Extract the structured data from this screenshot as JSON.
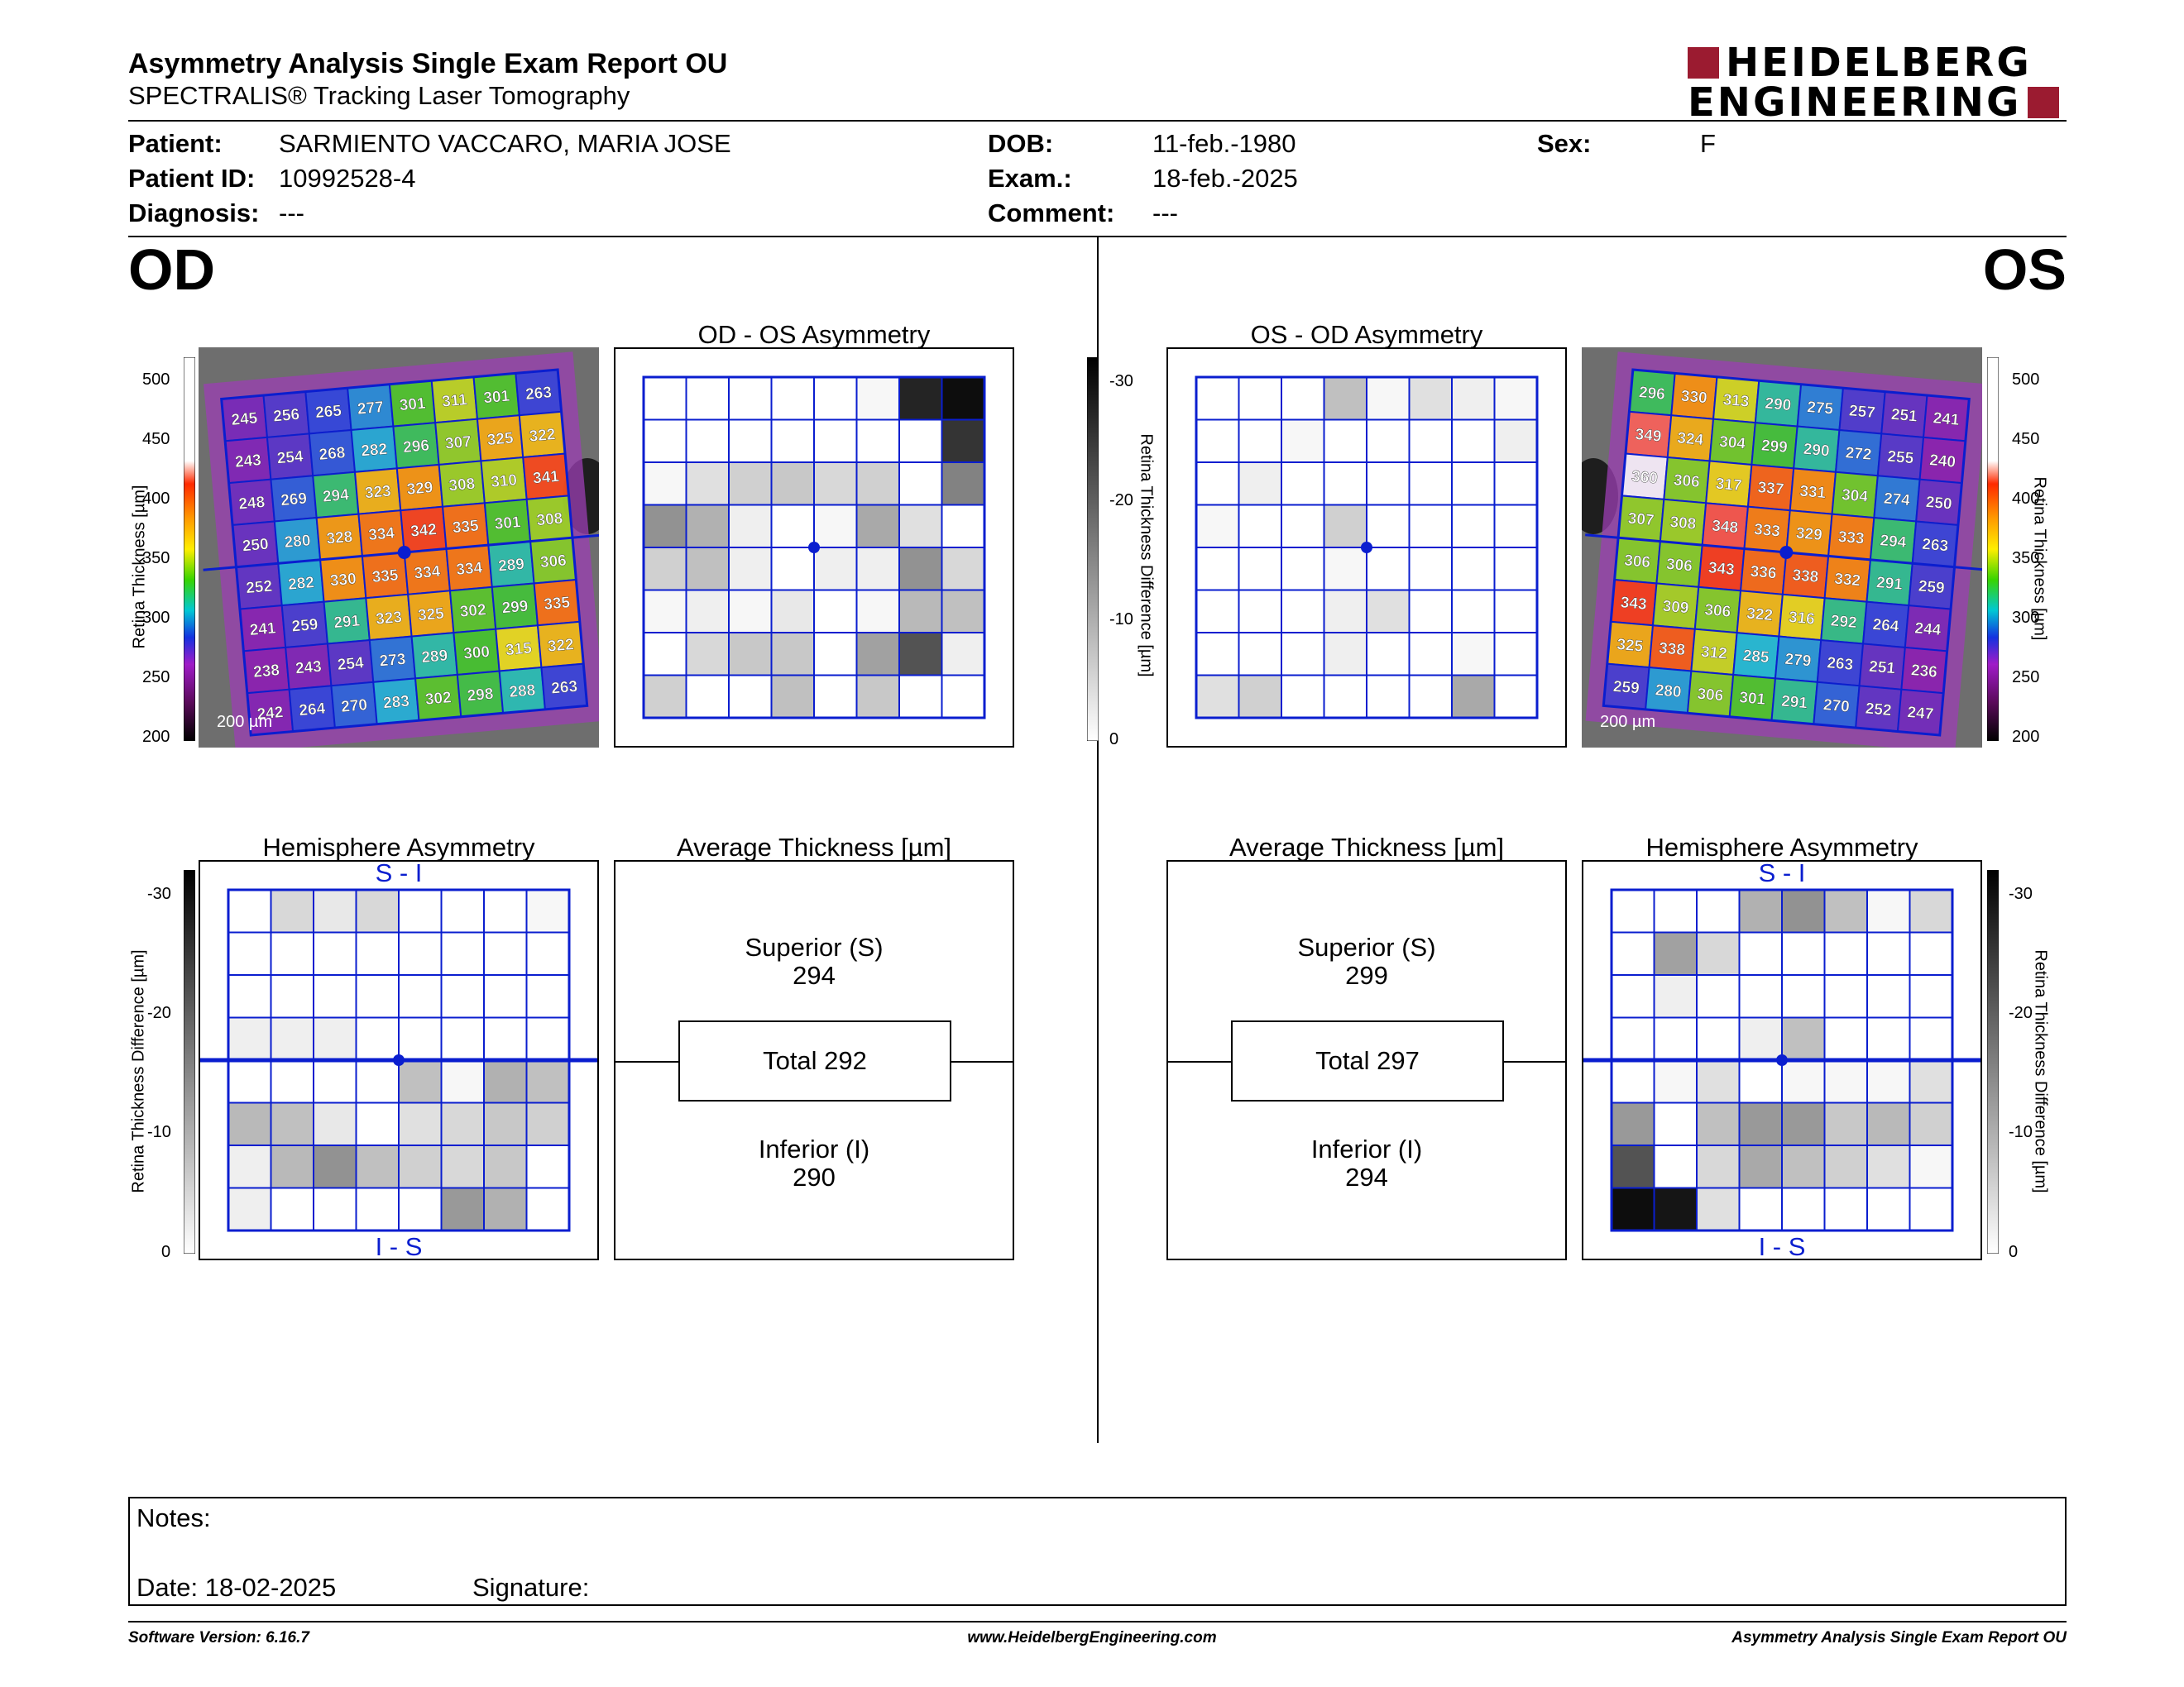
{
  "header": {
    "title": "Asymmetry Analysis Single Exam Report OU",
    "subtitle": "SPECTRALIS® Tracking Laser Tomography",
    "logo_line1": "HEIDELBERG",
    "logo_line2": "ENGINEERING"
  },
  "patient": {
    "patient_label": "Patient:",
    "patient_value": "SARMIENTO VACCARO, MARIA JOSE",
    "id_label": "Patient ID:",
    "id_value": "10992528-4",
    "diagnosis_label": "Diagnosis:",
    "diagnosis_value": "---",
    "dob_label": "DOB:",
    "dob_value": "11-feb.-1980",
    "exam_label": "Exam.:",
    "exam_value": "18-feb.-2025",
    "comment_label": "Comment:",
    "comment_value": "---",
    "sex_label": "Sex:",
    "sex_value": "F"
  },
  "od": {
    "eye_label": "OD",
    "asym_title": "OD - OS Asymmetry",
    "hemi_title": "Hemisphere Asymmetry",
    "avg_title": "Average Thickness [µm]",
    "hemi_top": "S - I",
    "hemi_bottom": "I - S",
    "superior_label": "Superior (S)",
    "superior_value": "294",
    "total_label": "Total 292",
    "inferior_label": "Inferior (I)",
    "inferior_value": "290",
    "scale_bar": "200 µm",
    "thickness_grid": [
      [
        245,
        256,
        265,
        277,
        301,
        311,
        301,
        263
      ],
      [
        243,
        254,
        268,
        282,
        296,
        307,
        325,
        322
      ],
      [
        248,
        269,
        294,
        323,
        329,
        308,
        310,
        341
      ],
      [
        250,
        280,
        328,
        334,
        342,
        335,
        301,
        308
      ],
      [
        252,
        282,
        330,
        335,
        334,
        334,
        289,
        306
      ],
      [
        241,
        259,
        291,
        323,
        325,
        302,
        299,
        335
      ],
      [
        238,
        243,
        254,
        273,
        289,
        300,
        315,
        322
      ],
      [
        242,
        264,
        270,
        283,
        302,
        298,
        288,
        263
      ]
    ],
    "asym_grid": [
      [
        0,
        0,
        0,
        0,
        0,
        1,
        28,
        31
      ],
      [
        0,
        0,
        0,
        0,
        0,
        0,
        0,
        26
      ],
      [
        1,
        4,
        6,
        7,
        5,
        6,
        0,
        16
      ],
      [
        14,
        10,
        2,
        0,
        1,
        11,
        4,
        0
      ],
      [
        6,
        8,
        2,
        0,
        2,
        2,
        14,
        5
      ],
      [
        1,
        2,
        1,
        3,
        0,
        1,
        9,
        8
      ],
      [
        0,
        5,
        7,
        7,
        0,
        12,
        22,
        2
      ],
      [
        6,
        0,
        0,
        8,
        0,
        7,
        0,
        0
      ]
    ],
    "hemi_grid": [
      [
        0,
        5,
        3,
        5,
        0,
        0,
        0,
        1
      ],
      [
        0,
        0,
        0,
        0,
        0,
        0,
        0,
        0
      ],
      [
        0,
        0,
        0,
        0,
        0,
        0,
        0,
        0
      ],
      [
        2,
        2,
        2,
        0,
        0,
        0,
        0,
        0
      ],
      [
        0,
        0,
        0,
        0,
        8,
        1,
        10,
        8
      ],
      [
        9,
        8,
        3,
        0,
        4,
        5,
        7,
        6
      ],
      [
        2,
        9,
        14,
        8,
        6,
        5,
        7,
        0
      ],
      [
        2,
        0,
        0,
        0,
        0,
        13,
        10,
        0
      ]
    ]
  },
  "os": {
    "eye_label": "OS",
    "asym_title": "OS - OD Asymmetry",
    "hemi_title": "Hemisphere Asymmetry",
    "avg_title": "Average Thickness [µm]",
    "hemi_top": "S - I",
    "hemi_bottom": "I - S",
    "superior_label": "Superior (S)",
    "superior_value": "299",
    "total_label": "Total 297",
    "inferior_label": "Inferior (I)",
    "inferior_value": "294",
    "scale_bar": "200 µm",
    "thickness_grid": [
      [
        296,
        330,
        313,
        290,
        275,
        257,
        251,
        241
      ],
      [
        349,
        324,
        304,
        299,
        290,
        272,
        255,
        240
      ],
      [
        360,
        306,
        317,
        337,
        331,
        304,
        274,
        250
      ],
      [
        307,
        308,
        348,
        333,
        329,
        333,
        294,
        263
      ],
      [
        306,
        306,
        343,
        336,
        338,
        332,
        291,
        259
      ],
      [
        343,
        309,
        306,
        322,
        316,
        292,
        264,
        244
      ],
      [
        325,
        338,
        312,
        285,
        279,
        263,
        251,
        236
      ],
      [
        259,
        280,
        306,
        301,
        291,
        270,
        252,
        247
      ]
    ],
    "asym_grid": [
      [
        0,
        0,
        0,
        8,
        1,
        4,
        2,
        1
      ],
      [
        0,
        0,
        1,
        0,
        0,
        0,
        0,
        2
      ],
      [
        0,
        2,
        0,
        0,
        0,
        0,
        0,
        0
      ],
      [
        1,
        0,
        0,
        6,
        0,
        0,
        0,
        0
      ],
      [
        0,
        0,
        0,
        1,
        0,
        0,
        0,
        0
      ],
      [
        0,
        0,
        0,
        2,
        4,
        0,
        0,
        0
      ],
      [
        0,
        0,
        0,
        2,
        0,
        0,
        1,
        0
      ],
      [
        4,
        6,
        0,
        0,
        0,
        0,
        11,
        0
      ]
    ],
    "hemi_grid": [
      [
        0,
        0,
        0,
        10,
        14,
        8,
        1,
        5
      ],
      [
        0,
        12,
        5,
        0,
        0,
        0,
        0,
        0
      ],
      [
        0,
        2,
        0,
        0,
        0,
        0,
        0,
        0
      ],
      [
        0,
        0,
        0,
        2,
        8,
        0,
        0,
        0
      ],
      [
        0,
        1,
        4,
        0,
        1,
        1,
        1,
        4
      ],
      [
        13,
        0,
        8,
        13,
        13,
        7,
        9,
        6
      ],
      [
        22,
        0,
        5,
        11,
        8,
        6,
        4,
        1
      ],
      [
        31,
        30,
        4,
        0,
        0,
        0,
        0,
        0
      ]
    ]
  },
  "scales": {
    "thickness_label": "Retina  Thickness [µm]",
    "thickness_ticks": [
      "500",
      "450",
      "400",
      "350",
      "300",
      "250",
      "200"
    ],
    "diff_label": "Retina Thickness Difference [µm]",
    "diff_ticks": [
      "-30",
      "-20",
      "-10",
      "0"
    ]
  },
  "notes": {
    "notes_label": "Notes:",
    "date_label": "Date: 18-02-2025",
    "signature_label": "Signature:"
  },
  "footer": {
    "version": "Software Version: 6.16.7",
    "website": "www.HeidelbergEngineering.com",
    "report_name": "Asymmetry Analysis Single Exam Report OU"
  },
  "colors": {
    "grid_blue": "#0a1ecf",
    "brand": "#9b1b30"
  }
}
